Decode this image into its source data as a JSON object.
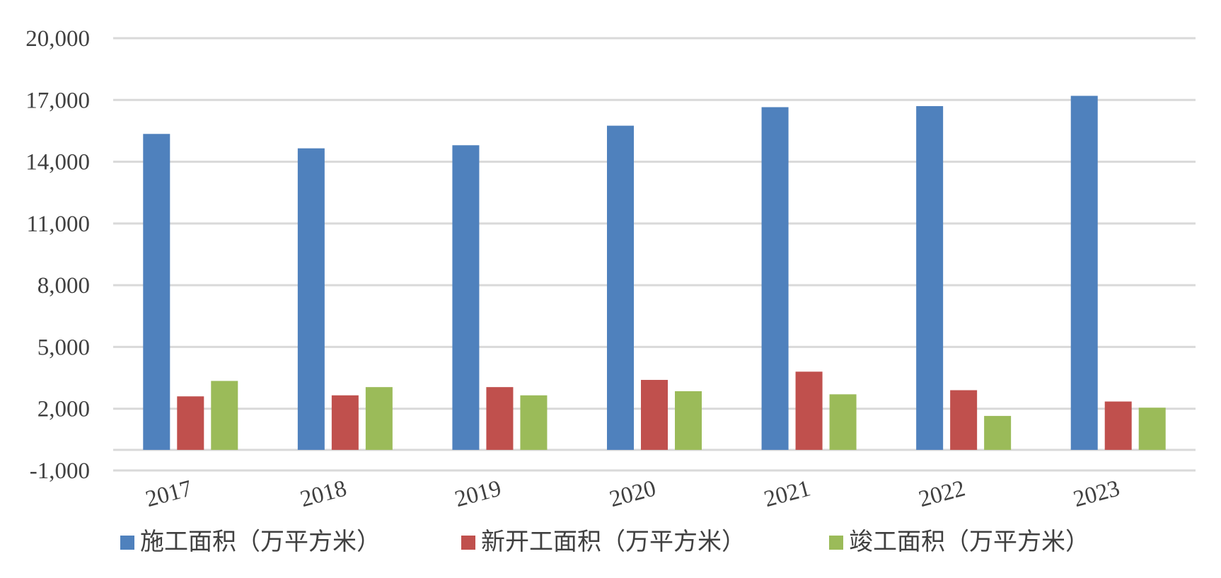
{
  "chart_data": {
    "type": "bar",
    "title": "",
    "xlabel": "",
    "ylabel": "",
    "categories": [
      "2017",
      "2018",
      "2019",
      "2020",
      "2021",
      "2022",
      "2023"
    ],
    "series": [
      {
        "name": "施工面积（万平方米）",
        "color": "#4f81bd",
        "values": [
          15350,
          14650,
          14800,
          15750,
          16650,
          16700,
          17200
        ]
      },
      {
        "name": "新开工面积（万平方米）",
        "color": "#c0504d",
        "values": [
          2600,
          2650,
          3050,
          3400,
          3800,
          2900,
          2350
        ]
      },
      {
        "name": "竣工面积（万平方米）",
        "color": "#9bbb59",
        "values": [
          3350,
          3050,
          2650,
          2850,
          2700,
          1650,
          2050
        ]
      }
    ],
    "y_ticks": [
      "-1,000",
      "2,000",
      "5,000",
      "8,000",
      "11,000",
      "14,000",
      "17,000",
      "20,000"
    ],
    "y_tick_values": [
      -1000,
      2000,
      5000,
      8000,
      11000,
      14000,
      17000,
      20000
    ],
    "ylim": [
      -1000,
      20000
    ],
    "grid": true,
    "legend_position": "bottom",
    "gridline_color": "#d9d9d9",
    "axis_line_color": "#d9d9d9"
  }
}
